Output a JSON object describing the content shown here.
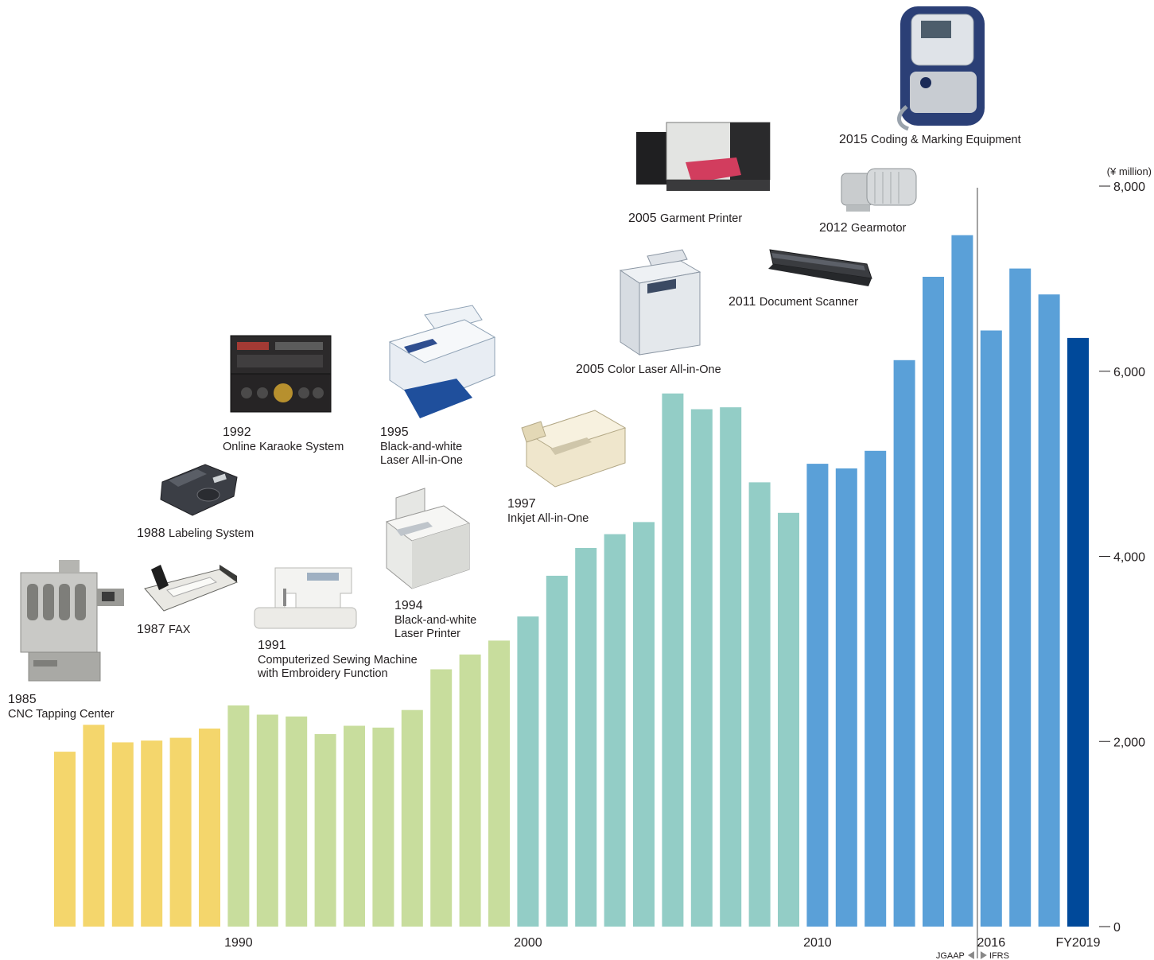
{
  "chart_data": {
    "type": "bar",
    "unit": "(¥ million)",
    "ylim": [
      0,
      8000
    ],
    "yticks": [
      {
        "value": 0,
        "label": "0"
      },
      {
        "value": 2000,
        "label": "2,000"
      },
      {
        "value": 4000,
        "label": "4,000"
      },
      {
        "value": 6000,
        "label": "6,000"
      },
      {
        "value": 8000,
        "label": "8,000"
      }
    ],
    "x_labels": [
      {
        "year": 1990,
        "label": "1990"
      },
      {
        "year": 2000,
        "label": "2000"
      },
      {
        "year": 2010,
        "label": "2010"
      },
      {
        "year": 2016,
        "label": "2016"
      },
      {
        "year": 2019,
        "label": "FY2019"
      }
    ],
    "categories": [
      1984,
      1985,
      1986,
      1987,
      1988,
      1989,
      1990,
      1991,
      1992,
      1993,
      1994,
      1995,
      1996,
      1997,
      1998,
      1999,
      2000,
      2001,
      2002,
      2003,
      2004,
      2005,
      2006,
      2007,
      2008,
      2009,
      2010,
      2011,
      2012,
      2013,
      2014,
      2015,
      2016,
      2017,
      2018,
      2019
    ],
    "values": [
      1890,
      2180,
      1990,
      2010,
      2040,
      2140,
      2390,
      2290,
      2270,
      2080,
      2170,
      2150,
      2340,
      2780,
      2940,
      3090,
      3350,
      3790,
      4090,
      4240,
      4370,
      5760,
      5590,
      5610,
      4800,
      4470,
      5000,
      4950,
      5140,
      6120,
      7020,
      7470,
      6440,
      7110,
      6830,
      6360
    ],
    "bar_colors": {
      "1984-1989": "#f4d66c",
      "1990-1999": "#c8dd9d",
      "2000-2009": "#93cdc6",
      "2010-2018": "#5aa0d8",
      "2019": "#00499a"
    },
    "accounting_standard": {
      "left": "JGAAP",
      "right": "IFRS"
    },
    "grid": false
  },
  "product_milestones": [
    {
      "id": "p1985",
      "year": "1985",
      "name": "CNC Tapping Center",
      "icon": "cnc-tapping-center-icon"
    },
    {
      "id": "p1987",
      "year": "1987",
      "name": "FAX",
      "icon": "fax-machine-icon"
    },
    {
      "id": "p1988",
      "year": "1988",
      "name": "Labeling System",
      "icon": "labeling-system-icon"
    },
    {
      "id": "p1991",
      "year": "1991",
      "name": "Computerized Sewing Machine\nwith Embroidery Function",
      "icon": "sewing-machine-icon"
    },
    {
      "id": "p1992",
      "year": "1992",
      "name": "Online Karaoke System",
      "icon": "karaoke-system-icon"
    },
    {
      "id": "p1994",
      "year": "1994",
      "name": "Black-and-white\nLaser Printer",
      "icon": "laser-printer-icon"
    },
    {
      "id": "p1995",
      "year": "1995",
      "name": "Black-and-white\nLaser All-in-One",
      "icon": "laser-all-in-one-icon"
    },
    {
      "id": "p1997",
      "year": "1997",
      "name": "Inkjet All-in-One",
      "icon": "inkjet-all-in-one-icon"
    },
    {
      "id": "p2005a",
      "year": "2005",
      "name": "Color Laser All-in-One",
      "icon": "color-laser-all-in-one-icon"
    },
    {
      "id": "p2005b",
      "year": "2005",
      "name": "Garment Printer",
      "icon": "garment-printer-icon"
    },
    {
      "id": "p2011",
      "year": "2011",
      "name": "Document Scanner",
      "icon": "document-scanner-icon"
    },
    {
      "id": "p2012",
      "year": "2012",
      "name": "Gearmotor",
      "icon": "gearmotor-icon"
    },
    {
      "id": "p2015",
      "year": "2015",
      "name": "Coding & Marking Equipment",
      "icon": "coding-marking-equipment-icon"
    }
  ]
}
